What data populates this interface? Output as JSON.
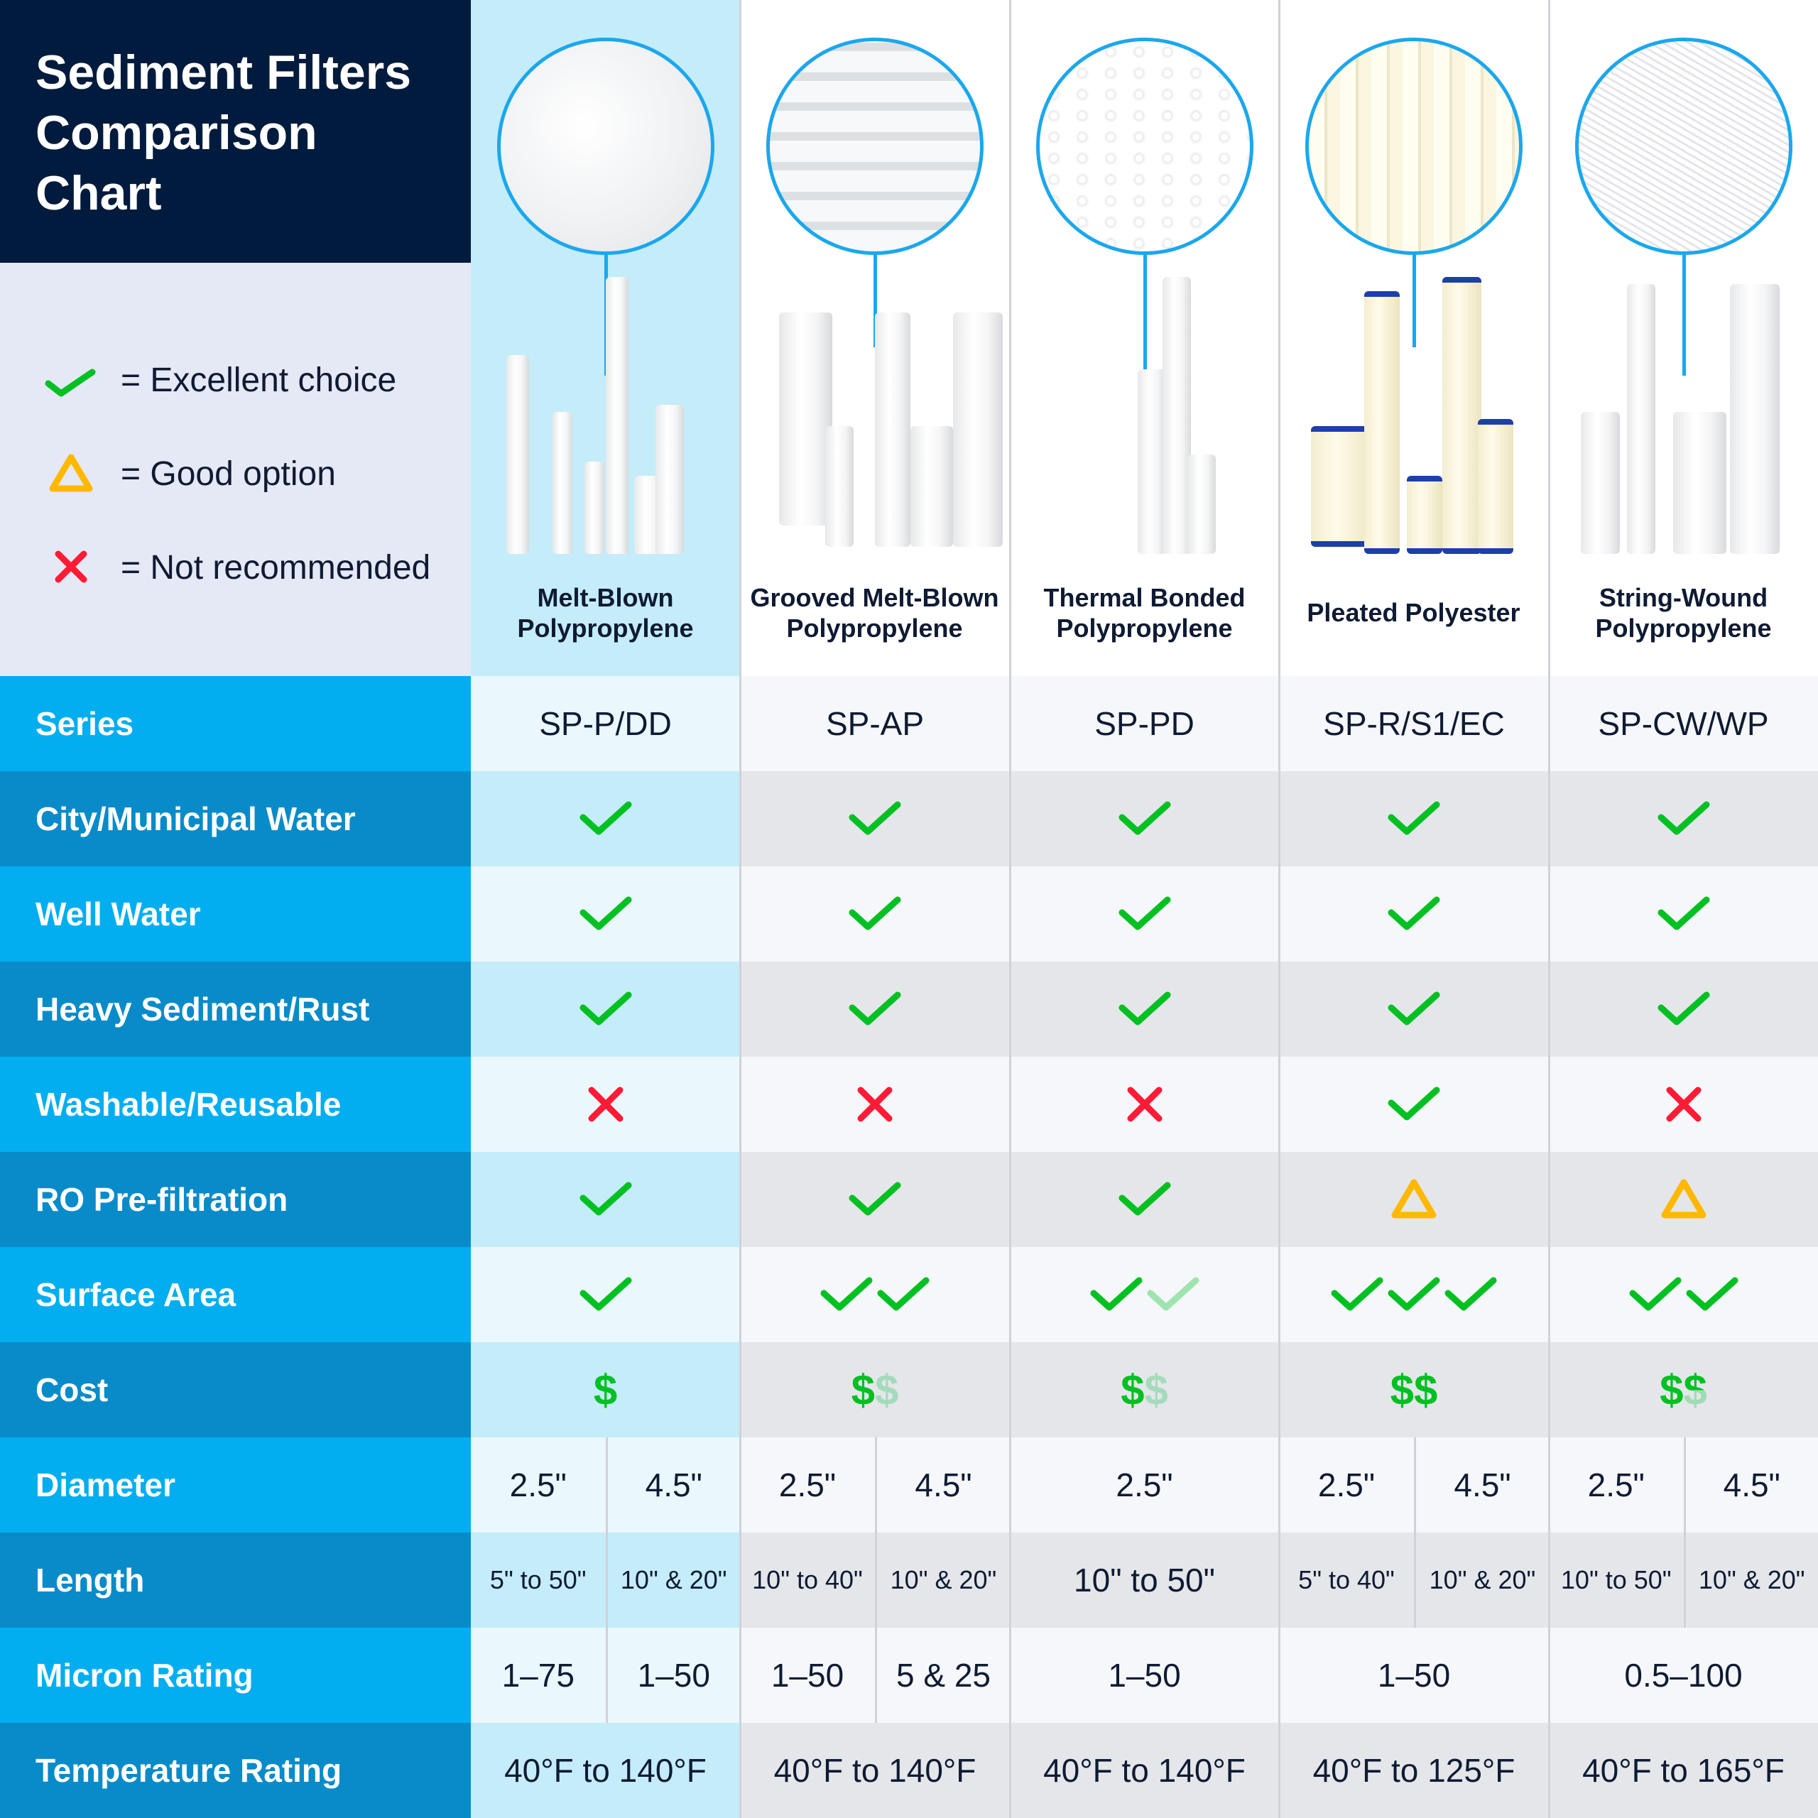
{
  "title": "Sediment Filters Comparison Chart",
  "legend": [
    {
      "icon": "check-icon",
      "label": "= Excellent choice"
    },
    {
      "icon": "triangle-icon",
      "label": "= Good option"
    },
    {
      "icon": "x-icon",
      "label": "= Not recommended"
    }
  ],
  "colors": {
    "navy": "#001b3d",
    "label_light": "#03aef0",
    "label_dark": "#0a8bc9",
    "check": "#00c022",
    "warn": "#ffb800",
    "cross": "#ff1a35",
    "highlight": "#c4ecf9"
  },
  "products": [
    {
      "name": "Melt-Blown Polypropylene",
      "highlighted": true
    },
    {
      "name": "Grooved Melt-Blown Polypropylene"
    },
    {
      "name": "Thermal Bonded Polypropylene"
    },
    {
      "name": "Pleated Polyester"
    },
    {
      "name": "String-Wound Polypropylene"
    }
  ],
  "rows": [
    {
      "label": "Series",
      "type": "text",
      "cells": [
        [
          "SP-P/DD"
        ],
        [
          "SP-AP"
        ],
        [
          "SP-PD"
        ],
        [
          "SP-R/S1/EC"
        ],
        [
          "SP-CW/WP"
        ]
      ]
    },
    {
      "label": "City/Municipal Water",
      "type": "icon",
      "cells": [
        "check",
        "check",
        "check",
        "check",
        "check"
      ]
    },
    {
      "label": "Well Water",
      "type": "icon",
      "cells": [
        "check",
        "check",
        "check",
        "check",
        "check"
      ]
    },
    {
      "label": "Heavy Sediment/Rust",
      "type": "icon",
      "cells": [
        "check",
        "check",
        "check",
        "check",
        "check"
      ]
    },
    {
      "label": "Washable/Reusable",
      "type": "icon",
      "cells": [
        "cross",
        "cross",
        "cross",
        "check",
        "cross"
      ]
    },
    {
      "label": "RO Pre-filtration",
      "type": "icon",
      "cells": [
        "check",
        "check",
        "check",
        "triangle",
        "triangle"
      ]
    },
    {
      "label": "Surface Area",
      "type": "multi",
      "symbol": "check",
      "cells": [
        [
          "full"
        ],
        [
          "full",
          "full"
        ],
        [
          "full",
          "faded"
        ],
        [
          "full",
          "full",
          "full"
        ],
        [
          "full",
          "full"
        ]
      ]
    },
    {
      "label": "Cost",
      "type": "multi",
      "symbol": "$",
      "cells": [
        [
          "full"
        ],
        [
          "full",
          "faded"
        ],
        [
          "full",
          "faded"
        ],
        [
          "full",
          "full"
        ],
        [
          "full",
          "half"
        ]
      ]
    },
    {
      "label": "Diameter",
      "type": "text",
      "cells": [
        [
          "2.5\"",
          "4.5\""
        ],
        [
          "2.5\"",
          "4.5\""
        ],
        [
          "2.5\""
        ],
        [
          "2.5\"",
          "4.5\""
        ],
        [
          "2.5\"",
          "4.5\""
        ]
      ]
    },
    {
      "label": "Length",
      "type": "text",
      "small": true,
      "cells": [
        [
          "5\" to 50\"",
          "10\" & 20\""
        ],
        [
          "10\" to 40\"",
          "10\" & 20\""
        ],
        [
          "10\" to 50\""
        ],
        [
          "5\" to 40\"",
          "10\" & 20\""
        ],
        [
          "10\" to 50\"",
          "10\" & 20\""
        ]
      ]
    },
    {
      "label": "Micron Rating",
      "type": "text",
      "cells": [
        [
          "1–75",
          "1–50"
        ],
        [
          "1–50",
          "5 & 25"
        ],
        [
          "1–50"
        ],
        [
          "1–50"
        ],
        [
          "0.5–100"
        ]
      ]
    },
    {
      "label": "Temperature Rating",
      "type": "text",
      "cells": [
        [
          "40°F to 140°F"
        ],
        [
          "40°F to 140°F"
        ],
        [
          "40°F to 140°F"
        ],
        [
          "40°F to 125°F"
        ],
        [
          "40°F to 165°F"
        ]
      ]
    }
  ]
}
